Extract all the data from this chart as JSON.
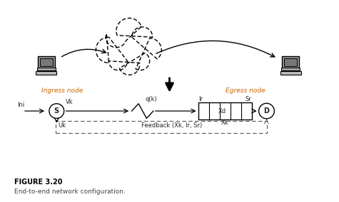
{
  "title": "FIGURE 3.20",
  "subtitle": "End-to-end network configuration.",
  "ingress_label": "Ingress node",
  "egress_label": "Egress node",
  "node_s_label": "S",
  "node_d_label": "D",
  "ini_label": "Ini",
  "vk_label": "Vk",
  "uk_label": "Uk",
  "qk_label": "q(k)",
  "ir_label": "Ir",
  "sr_label": "Sr",
  "xd_label": "Xd",
  "xk_label": "Xk",
  "feedback_label": "Feedback (Xk, Ir, Sr)",
  "label_color": "#cc6600",
  "text_color": "#222222",
  "figure_title_color": "#000000",
  "bg_color": "#ffffff",
  "cloud_color": "#000000"
}
